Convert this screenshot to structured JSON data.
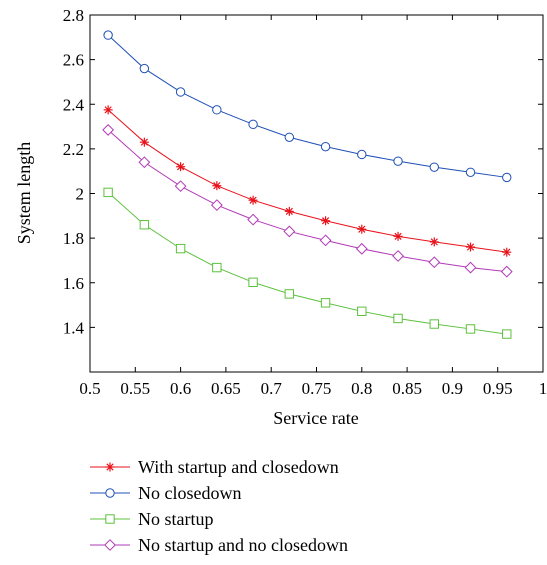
{
  "chart_data": {
    "type": "line",
    "xlabel": "Service rate",
    "ylabel": "System length",
    "xlim": [
      0.5,
      1.0
    ],
    "ylim": [
      1.2,
      2.8
    ],
    "xticks": [
      "0.5",
      "0.55",
      "0.6",
      "0.65",
      "0.7",
      "0.75",
      "0.8",
      "0.85",
      "0.9",
      "0.95",
      "1"
    ],
    "yticks": [
      "1.4",
      "1.6",
      "1.8",
      "2",
      "2.2",
      "2.4",
      "2.6",
      "2.8"
    ],
    "grid": false,
    "legend_position": "bottom",
    "x": [
      0.52,
      0.56,
      0.6,
      0.64,
      0.68,
      0.72,
      0.76,
      0.8,
      0.84,
      0.88,
      0.92,
      0.96
    ],
    "series": [
      {
        "name": "With startup and closedown",
        "color": "#e8121a",
        "marker": "asterisk",
        "values": [
          2.375,
          2.23,
          2.12,
          2.035,
          1.97,
          1.92,
          1.878,
          1.84,
          1.808,
          1.783,
          1.76,
          1.737
        ]
      },
      {
        "name": "No closedown",
        "color": "#1f4fb4",
        "marker": "circle",
        "values": [
          2.71,
          2.56,
          2.455,
          2.375,
          2.31,
          2.252,
          2.21,
          2.175,
          2.145,
          2.118,
          2.095,
          2.072
        ]
      },
      {
        "name": "No startup",
        "color": "#5cc13c",
        "marker": "square",
        "values": [
          2.005,
          1.86,
          1.753,
          1.668,
          1.602,
          1.55,
          1.51,
          1.472,
          1.44,
          1.415,
          1.393,
          1.37
        ]
      },
      {
        "name": "No startup and no closedown",
        "color": "#b23ab8",
        "marker": "diamond",
        "values": [
          2.285,
          2.14,
          2.033,
          1.948,
          1.883,
          1.83,
          1.79,
          1.752,
          1.72,
          1.692,
          1.668,
          1.65
        ]
      }
    ]
  }
}
